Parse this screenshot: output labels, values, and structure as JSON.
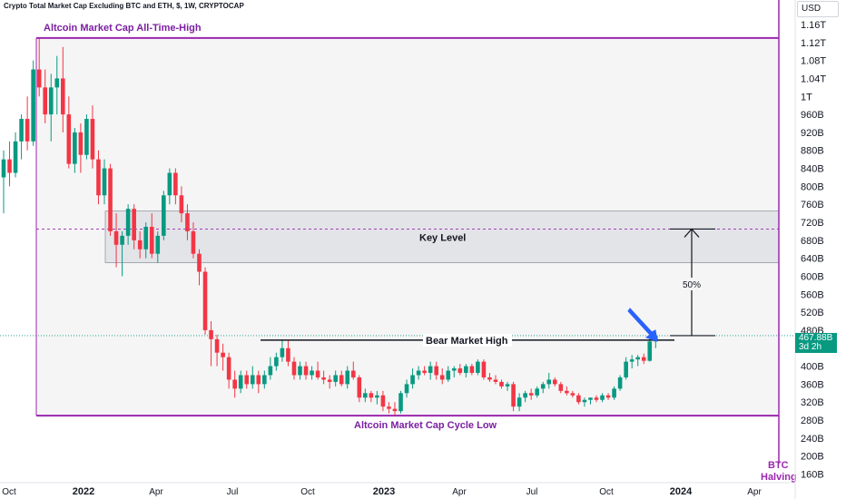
{
  "header": {
    "title": "Crypto Total Market Cap Excluding BTC and ETH, $, 1W, CRYPTOCAP",
    "currency": "USD"
  },
  "price_axis": {
    "labels": [
      "1.16T",
      "1.12T",
      "1.08T",
      "1.04T",
      "1T",
      "960B",
      "920B",
      "880B",
      "840B",
      "800B",
      "760B",
      "720B",
      "680B",
      "640B",
      "600B",
      "560B",
      "520B",
      "480B",
      "440B",
      "400B",
      "360B",
      "320B",
      "280B",
      "240B",
      "200B",
      "160B"
    ]
  },
  "time_axis": {
    "labels": [
      "Oct",
      "2022",
      "Apr",
      "Jul",
      "Oct",
      "2023",
      "Apr",
      "Jul",
      "Oct",
      "2024",
      "Apr"
    ]
  },
  "last_price": {
    "value": "467.88B",
    "countdown": "3d 2h"
  },
  "annotations": {
    "ath_label": "Altcoin Market Cap All-Time-High",
    "key_level_label": "Key Level",
    "bear_high_label": "Bear Market High",
    "cycle_low_label": "Altcoin Market Cap Cycle Low",
    "pct_label": "50%",
    "halving_line1": "BTC",
    "halving_line2": "Halving"
  },
  "colors": {
    "up": "#089981",
    "down": "#f23645",
    "purple": "#9c27b0",
    "arrow": "#2962ff"
  },
  "chart_data": {
    "type": "candlestick",
    "title": "Crypto Total Market Cap Excluding BTC and ETH, $, 1W, CRYPTOCAP",
    "timeframe": "1W",
    "y_scale": "linear",
    "ylim": [
      160,
      1180
    ],
    "y_unit": "billion USD",
    "x_range": [
      "2021-10",
      "2024-05"
    ],
    "last_value": 467.88,
    "levels": {
      "all_time_high": 1130,
      "key_level_zone": [
        630,
        745
      ],
      "key_level_target": 705,
      "bear_market_high": 458,
      "cycle_low": 290,
      "current": 467.88
    },
    "move_to_target_pct": 50,
    "events": [
      {
        "label": "BTC Halving",
        "date": "2024-04"
      }
    ],
    "candles": [
      {
        "o": 820,
        "h": 880,
        "l": 740,
        "c": 860
      },
      {
        "o": 860,
        "h": 900,
        "l": 800,
        "c": 830
      },
      {
        "o": 830,
        "h": 920,
        "l": 820,
        "c": 900
      },
      {
        "o": 900,
        "h": 960,
        "l": 860,
        "c": 950
      },
      {
        "o": 950,
        "h": 1000,
        "l": 880,
        "c": 900
      },
      {
        "o": 900,
        "h": 1080,
        "l": 890,
        "c": 1060
      },
      {
        "o": 1060,
        "h": 1130,
        "l": 1000,
        "c": 1020
      },
      {
        "o": 1020,
        "h": 1060,
        "l": 940,
        "c": 960
      },
      {
        "o": 960,
        "h": 1050,
        "l": 900,
        "c": 1020
      },
      {
        "o": 1020,
        "h": 1090,
        "l": 960,
        "c": 1040
      },
      {
        "o": 1040,
        "h": 1110,
        "l": 920,
        "c": 960
      },
      {
        "o": 960,
        "h": 1000,
        "l": 840,
        "c": 850
      },
      {
        "o": 850,
        "h": 930,
        "l": 830,
        "c": 920
      },
      {
        "o": 920,
        "h": 940,
        "l": 830,
        "c": 870
      },
      {
        "o": 870,
        "h": 960,
        "l": 860,
        "c": 950
      },
      {
        "o": 950,
        "h": 980,
        "l": 840,
        "c": 860
      },
      {
        "o": 860,
        "h": 880,
        "l": 760,
        "c": 780
      },
      {
        "o": 780,
        "h": 860,
        "l": 760,
        "c": 840
      },
      {
        "o": 840,
        "h": 850,
        "l": 690,
        "c": 700
      },
      {
        "o": 700,
        "h": 740,
        "l": 620,
        "c": 670
      },
      {
        "o": 670,
        "h": 700,
        "l": 600,
        "c": 690
      },
      {
        "o": 690,
        "h": 760,
        "l": 670,
        "c": 750
      },
      {
        "o": 750,
        "h": 760,
        "l": 660,
        "c": 680
      },
      {
        "o": 680,
        "h": 700,
        "l": 640,
        "c": 660
      },
      {
        "o": 660,
        "h": 720,
        "l": 640,
        "c": 710
      },
      {
        "o": 710,
        "h": 740,
        "l": 640,
        "c": 650
      },
      {
        "o": 650,
        "h": 700,
        "l": 630,
        "c": 690
      },
      {
        "o": 690,
        "h": 790,
        "l": 680,
        "c": 780
      },
      {
        "o": 780,
        "h": 840,
        "l": 760,
        "c": 830
      },
      {
        "o": 830,
        "h": 840,
        "l": 760,
        "c": 780
      },
      {
        "o": 780,
        "h": 800,
        "l": 720,
        "c": 740
      },
      {
        "o": 740,
        "h": 760,
        "l": 680,
        "c": 700
      },
      {
        "o": 700,
        "h": 720,
        "l": 640,
        "c": 650
      },
      {
        "o": 650,
        "h": 660,
        "l": 580,
        "c": 610
      },
      {
        "o": 610,
        "h": 620,
        "l": 470,
        "c": 480
      },
      {
        "o": 480,
        "h": 500,
        "l": 400,
        "c": 460
      },
      {
        "o": 460,
        "h": 470,
        "l": 400,
        "c": 430
      },
      {
        "o": 430,
        "h": 450,
        "l": 390,
        "c": 420
      },
      {
        "o": 420,
        "h": 430,
        "l": 350,
        "c": 370
      },
      {
        "o": 370,
        "h": 390,
        "l": 330,
        "c": 350
      },
      {
        "o": 350,
        "h": 390,
        "l": 340,
        "c": 380
      },
      {
        "o": 380,
        "h": 390,
        "l": 350,
        "c": 360
      },
      {
        "o": 360,
        "h": 400,
        "l": 350,
        "c": 380
      },
      {
        "o": 380,
        "h": 390,
        "l": 340,
        "c": 360
      },
      {
        "o": 360,
        "h": 390,
        "l": 350,
        "c": 380
      },
      {
        "o": 380,
        "h": 420,
        "l": 370,
        "c": 400
      },
      {
        "o": 400,
        "h": 430,
        "l": 390,
        "c": 420
      },
      {
        "o": 420,
        "h": 460,
        "l": 410,
        "c": 440
      },
      {
        "o": 440,
        "h": 458,
        "l": 400,
        "c": 410
      },
      {
        "o": 410,
        "h": 420,
        "l": 370,
        "c": 380
      },
      {
        "o": 380,
        "h": 410,
        "l": 370,
        "c": 400
      },
      {
        "o": 400,
        "h": 410,
        "l": 370,
        "c": 380
      },
      {
        "o": 380,
        "h": 400,
        "l": 370,
        "c": 390
      },
      {
        "o": 390,
        "h": 410,
        "l": 370,
        "c": 375
      },
      {
        "o": 375,
        "h": 390,
        "l": 360,
        "c": 370
      },
      {
        "o": 370,
        "h": 380,
        "l": 350,
        "c": 365
      },
      {
        "o": 365,
        "h": 390,
        "l": 355,
        "c": 380
      },
      {
        "o": 380,
        "h": 390,
        "l": 355,
        "c": 360
      },
      {
        "o": 360,
        "h": 400,
        "l": 350,
        "c": 390
      },
      {
        "o": 390,
        "h": 410,
        "l": 370,
        "c": 375
      },
      {
        "o": 375,
        "h": 380,
        "l": 320,
        "c": 330
      },
      {
        "o": 330,
        "h": 350,
        "l": 320,
        "c": 340
      },
      {
        "o": 340,
        "h": 345,
        "l": 320,
        "c": 330
      },
      {
        "o": 330,
        "h": 345,
        "l": 315,
        "c": 335
      },
      {
        "o": 335,
        "h": 345,
        "l": 300,
        "c": 310
      },
      {
        "o": 310,
        "h": 320,
        "l": 295,
        "c": 305
      },
      {
        "o": 305,
        "h": 320,
        "l": 290,
        "c": 300
      },
      {
        "o": 300,
        "h": 345,
        "l": 295,
        "c": 340
      },
      {
        "o": 340,
        "h": 370,
        "l": 330,
        "c": 360
      },
      {
        "o": 360,
        "h": 395,
        "l": 350,
        "c": 380
      },
      {
        "o": 380,
        "h": 400,
        "l": 370,
        "c": 390
      },
      {
        "o": 390,
        "h": 400,
        "l": 380,
        "c": 385
      },
      {
        "o": 385,
        "h": 410,
        "l": 370,
        "c": 400
      },
      {
        "o": 400,
        "h": 410,
        "l": 370,
        "c": 380
      },
      {
        "o": 380,
        "h": 395,
        "l": 360,
        "c": 370
      },
      {
        "o": 370,
        "h": 400,
        "l": 365,
        "c": 390
      },
      {
        "o": 390,
        "h": 400,
        "l": 375,
        "c": 395
      },
      {
        "o": 395,
        "h": 405,
        "l": 380,
        "c": 385
      },
      {
        "o": 385,
        "h": 405,
        "l": 375,
        "c": 400
      },
      {
        "o": 400,
        "h": 405,
        "l": 380,
        "c": 385
      },
      {
        "o": 385,
        "h": 415,
        "l": 380,
        "c": 410
      },
      {
        "o": 410,
        "h": 415,
        "l": 370,
        "c": 375
      },
      {
        "o": 375,
        "h": 385,
        "l": 365,
        "c": 370
      },
      {
        "o": 370,
        "h": 380,
        "l": 360,
        "c": 365
      },
      {
        "o": 365,
        "h": 370,
        "l": 350,
        "c": 355
      },
      {
        "o": 355,
        "h": 365,
        "l": 345,
        "c": 360
      },
      {
        "o": 360,
        "h": 365,
        "l": 300,
        "c": 310
      },
      {
        "o": 310,
        "h": 340,
        "l": 300,
        "c": 330
      },
      {
        "o": 330,
        "h": 345,
        "l": 320,
        "c": 340
      },
      {
        "o": 340,
        "h": 350,
        "l": 325,
        "c": 335
      },
      {
        "o": 335,
        "h": 355,
        "l": 330,
        "c": 350
      },
      {
        "o": 350,
        "h": 365,
        "l": 340,
        "c": 360
      },
      {
        "o": 360,
        "h": 385,
        "l": 350,
        "c": 370
      },
      {
        "o": 370,
        "h": 375,
        "l": 355,
        "c": 360
      },
      {
        "o": 360,
        "h": 365,
        "l": 340,
        "c": 345
      },
      {
        "o": 345,
        "h": 355,
        "l": 335,
        "c": 340
      },
      {
        "o": 340,
        "h": 345,
        "l": 330,
        "c": 335
      },
      {
        "o": 335,
        "h": 340,
        "l": 315,
        "c": 320
      },
      {
        "o": 320,
        "h": 330,
        "l": 310,
        "c": 325
      },
      {
        "o": 325,
        "h": 330,
        "l": 315,
        "c": 330
      },
      {
        "o": 330,
        "h": 335,
        "l": 320,
        "c": 325
      },
      {
        "o": 325,
        "h": 340,
        "l": 320,
        "c": 335
      },
      {
        "o": 335,
        "h": 340,
        "l": 325,
        "c": 330
      },
      {
        "o": 330,
        "h": 355,
        "l": 325,
        "c": 350
      },
      {
        "o": 350,
        "h": 380,
        "l": 345,
        "c": 375
      },
      {
        "o": 375,
        "h": 420,
        "l": 370,
        "c": 410
      },
      {
        "o": 410,
        "h": 425,
        "l": 395,
        "c": 415
      },
      {
        "o": 415,
        "h": 425,
        "l": 400,
        "c": 420
      },
      {
        "o": 420,
        "h": 428,
        "l": 405,
        "c": 412
      },
      {
        "o": 412,
        "h": 460,
        "l": 410,
        "c": 455
      },
      {
        "o": 455,
        "h": 475,
        "l": 440,
        "c": 467.88
      }
    ]
  }
}
